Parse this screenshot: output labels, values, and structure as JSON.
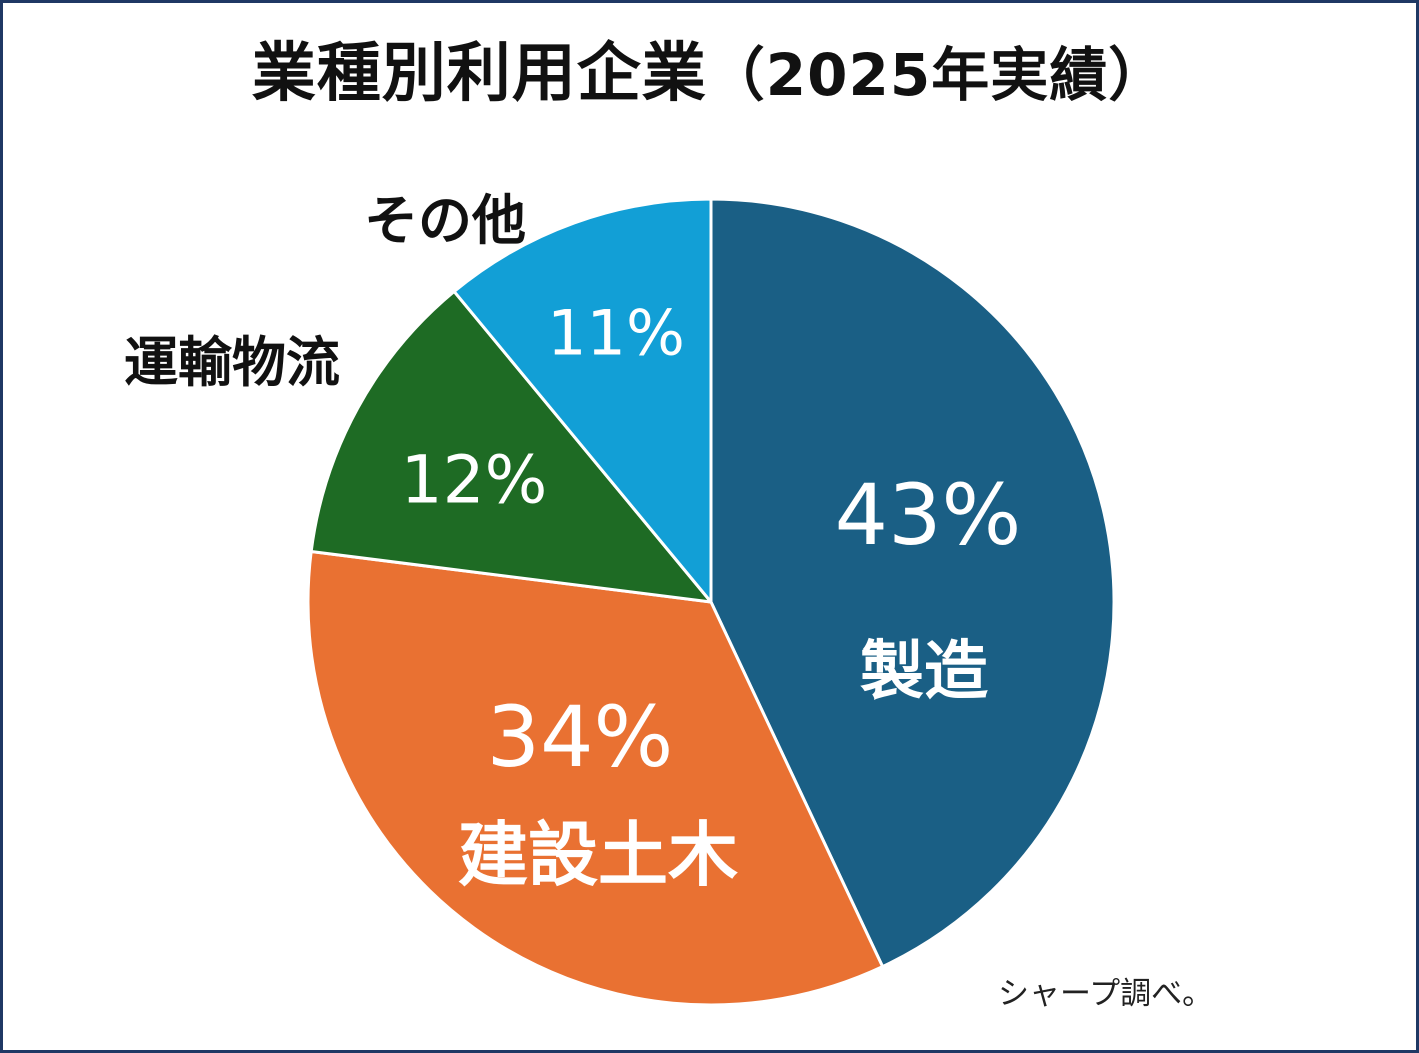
{
  "title": "業種別利用企業",
  "title_suffix": "（2025年実績）",
  "source_note": "シャープ調べ。",
  "chart_data": {
    "type": "pie",
    "title": "業種別利用企業（2025年実績）",
    "unit": "%",
    "start_angle_deg": 0,
    "direction": "clockwise",
    "slices": [
      {
        "label": "製造",
        "value": 43,
        "value_text": "43%",
        "color": "#1a5f85"
      },
      {
        "label": "建設土木",
        "value": 34,
        "value_text": "34%",
        "color": "#e97132"
      },
      {
        "label": "運輸物流",
        "value": 12,
        "value_text": "12%",
        "color": "#1e6b24"
      },
      {
        "label": "その他",
        "value": 11,
        "value_text": "11%",
        "color": "#129fd6"
      }
    ]
  }
}
